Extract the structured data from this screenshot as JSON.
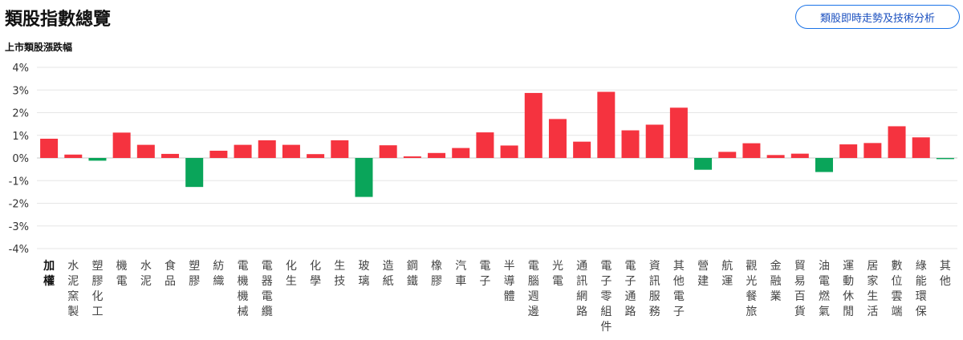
{
  "header": {
    "title": "類股指數總覽",
    "action_button": "類股即時走勢及技術分析"
  },
  "chart_data": {
    "type": "bar",
    "title": "上市類股漲跌幅",
    "xlabel": "",
    "ylabel": "",
    "ylim": [
      -4,
      4
    ],
    "yticks": [
      "4%",
      "3%",
      "2%",
      "1%",
      "0%",
      "-1%",
      "-2%",
      "-3%",
      "-4%"
    ],
    "grid": true,
    "colors": {
      "up": "#f5333f",
      "down": "#0aa55a"
    },
    "categories": [
      "加權",
      "水泥窯製",
      "塑膠化工",
      "機電",
      "水泥",
      "食品",
      "塑膠",
      "紡織",
      "電機機械",
      "電器電纜",
      "化生",
      "化學",
      "生技",
      "玻璃",
      "造紙",
      "鋼鐵",
      "橡膠",
      "汽車",
      "電子",
      "半導體",
      "電腦週邊",
      "光電",
      "通訊網路",
      "電子零組件",
      "電子通路",
      "資訊服務",
      "其他電子",
      "營建",
      "航運",
      "觀光餐旅",
      "金融業",
      "貿易百貨",
      "油電燃氣",
      "運動休閒",
      "居家生活",
      "數位雲端",
      "綠能環保",
      "其他"
    ],
    "values": [
      0.85,
      0.15,
      -0.12,
      1.12,
      0.58,
      0.18,
      -1.28,
      0.32,
      0.58,
      0.78,
      0.58,
      0.17,
      0.78,
      -1.72,
      0.56,
      0.07,
      0.22,
      0.44,
      1.13,
      0.55,
      2.87,
      1.72,
      0.72,
      2.92,
      1.22,
      1.47,
      2.22,
      -0.52,
      0.27,
      0.65,
      0.13,
      0.19,
      -0.62,
      0.6,
      0.66,
      1.4,
      0.91,
      -0.05
    ]
  }
}
